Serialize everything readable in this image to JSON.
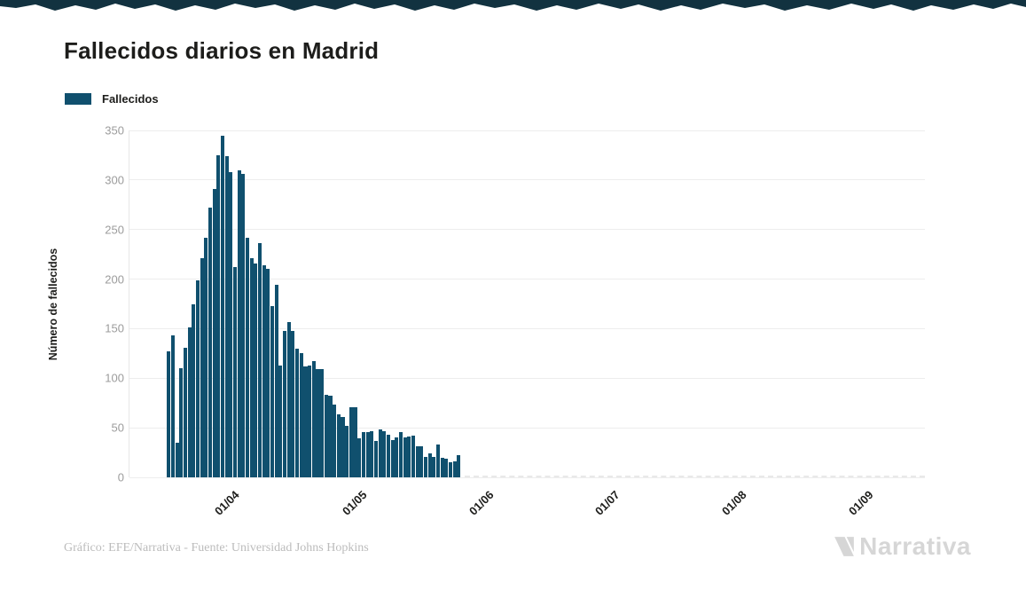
{
  "top_band": {
    "color": "#123240"
  },
  "header": {
    "title": "Fallecidos diarios en Madrid"
  },
  "legend": {
    "items": [
      {
        "label": "Fallecidos",
        "color": "#10506e"
      }
    ]
  },
  "chart_data": {
    "type": "bar",
    "title": "Fallecidos diarios en Madrid",
    "xlabel": "",
    "ylabel": "Número de fallecidos",
    "ylim": [
      0,
      350
    ],
    "y_ticks": [
      0,
      50,
      100,
      150,
      200,
      250,
      300,
      350
    ],
    "x_ticks": [
      "01/04",
      "01/05",
      "01/06",
      "01/07",
      "01/08",
      "01/09"
    ],
    "grid": "horizontal",
    "legend_position": "top-left",
    "bar_color": "#10506e",
    "series": [
      {
        "name": "Fallecidos",
        "dates": [
          "2020-03-16",
          "2020-03-17",
          "2020-03-18",
          "2020-03-19",
          "2020-03-20",
          "2020-03-21",
          "2020-03-22",
          "2020-03-23",
          "2020-03-24",
          "2020-03-25",
          "2020-03-26",
          "2020-03-27",
          "2020-03-28",
          "2020-03-29",
          "2020-03-30",
          "2020-03-31",
          "2020-04-01",
          "2020-04-02",
          "2020-04-03",
          "2020-04-04",
          "2020-04-05",
          "2020-04-06",
          "2020-04-07",
          "2020-04-08",
          "2020-04-09",
          "2020-04-10",
          "2020-04-11",
          "2020-04-12",
          "2020-04-13",
          "2020-04-14",
          "2020-04-15",
          "2020-04-16",
          "2020-04-17",
          "2020-04-18",
          "2020-04-19",
          "2020-04-20",
          "2020-04-21",
          "2020-04-22",
          "2020-04-23",
          "2020-04-24",
          "2020-04-25",
          "2020-04-26",
          "2020-04-27",
          "2020-04-28",
          "2020-04-29",
          "2020-04-30",
          "2020-05-01",
          "2020-05-02",
          "2020-05-03",
          "2020-05-04",
          "2020-05-05",
          "2020-05-06",
          "2020-05-07",
          "2020-05-08",
          "2020-05-09",
          "2020-05-10",
          "2020-05-11",
          "2020-05-12",
          "2020-05-13",
          "2020-05-14",
          "2020-05-15",
          "2020-05-16",
          "2020-05-17",
          "2020-05-18",
          "2020-05-19",
          "2020-05-20",
          "2020-05-21",
          "2020-05-22",
          "2020-05-23",
          "2020-05-24",
          "2020-05-25"
        ],
        "values": [
          127,
          143,
          35,
          110,
          131,
          151,
          175,
          199,
          221,
          242,
          272,
          291,
          325,
          345,
          324,
          308,
          212,
          310,
          306,
          242,
          221,
          216,
          236,
          214,
          210,
          173,
          194,
          113,
          148,
          157,
          148,
          130,
          125,
          112,
          113,
          117,
          109,
          109,
          83,
          82,
          73,
          64,
          61,
          52,
          71,
          71,
          39,
          46,
          46,
          47,
          37,
          48,
          47,
          43,
          38,
          40,
          46,
          40,
          41,
          42,
          31,
          31,
          21,
          24,
          21,
          33,
          20,
          19,
          15,
          16,
          22
        ]
      }
    ]
  },
  "footer": {
    "credit": "Gráfico: EFE/Narrativa - Fuente: Universidad Johns Hopkins",
    "brand": "Narrativa"
  }
}
